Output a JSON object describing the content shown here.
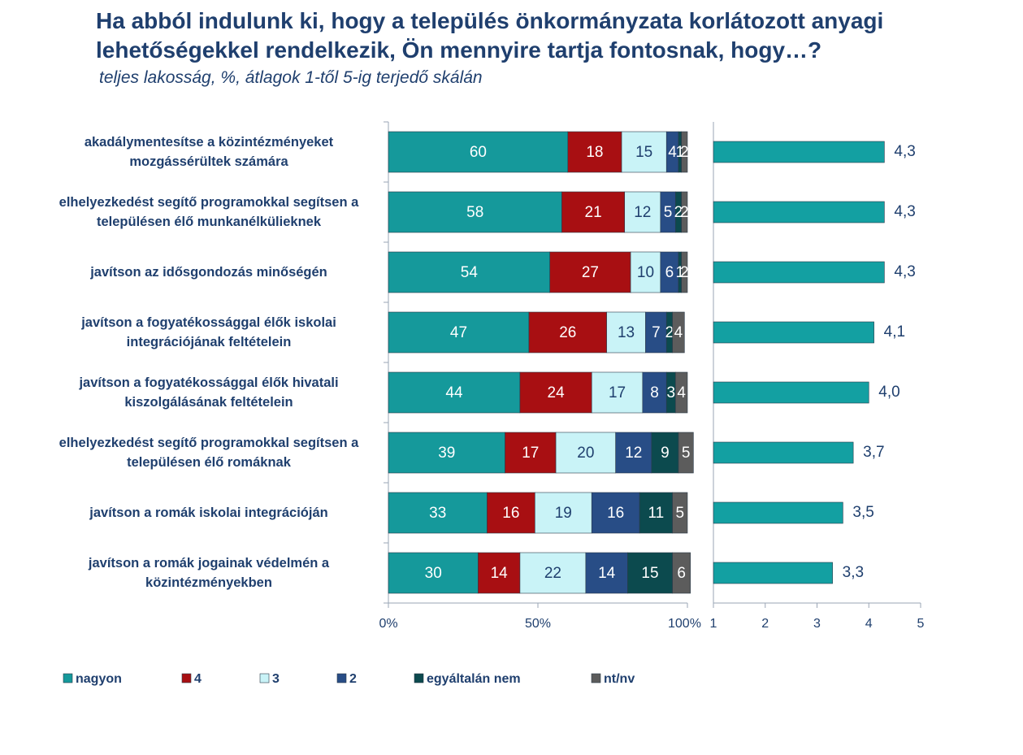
{
  "chart_data": [
    {
      "type": "bar",
      "stacked": true,
      "orientation": "horizontal",
      "title": "Ha abból indulunk ki, hogy a település önkormányzata korlátozott anyagi lehetőségekkel rendelkezik, Ön mennyire tartja fontosnak, hogy…?",
      "subtitle": "teljes lakosság, %, átlagok 1-től 5-ig terjedő skálán",
      "categories": [
        "akadálymentesítse a közintézményeket mozgássérültek számára",
        "elhelyezkedést segítő programokkal segítsen a településen élő munkanélkülieknek",
        "javítson az idősgondozás minőségén",
        "javítson a fogyatékossággal élők iskolai integrációjának feltételein",
        "javítson a fogyatékossággal élők hivatali kiszolgálásának feltételein",
        "elhelyezkedést segítő programokkal segítsen a településen élő romáknak",
        "javítson a romák iskolai integrációján",
        "javítson a romák jogainak védelmén a közintézményekben"
      ],
      "series": [
        {
          "name": "nagyon",
          "color": "#15999b",
          "values": [
            60,
            58,
            54,
            47,
            44,
            39,
            33,
            30
          ]
        },
        {
          "name": "4",
          "color": "#a80f12",
          "values": [
            18,
            21,
            27,
            26,
            24,
            17,
            16,
            14
          ]
        },
        {
          "name": "3",
          "color": "#c9f3f7",
          "values": [
            15,
            12,
            10,
            13,
            17,
            20,
            19,
            22
          ]
        },
        {
          "name": "2",
          "color": "#284d86",
          "values": [
            4,
            5,
            6,
            7,
            8,
            12,
            16,
            14
          ]
        },
        {
          "name": "egyáltalán nem",
          "color": "#0c4a4e",
          "values": [
            1,
            2,
            1,
            2,
            3,
            9,
            11,
            15
          ]
        },
        {
          "name": "nt/nv",
          "color": "#5c5c5c",
          "values": [
            2,
            2,
            2,
            4,
            4,
            5,
            5,
            6
          ]
        }
      ],
      "xlim": [
        0,
        100
      ],
      "xticks": [
        {
          "value": 0,
          "label": "0%"
        },
        {
          "value": 50,
          "label": "50%"
        },
        {
          "value": 100,
          "label": "100%"
        }
      ],
      "legend": "bottom"
    },
    {
      "type": "bar",
      "orientation": "horizontal",
      "color": "#13a0a2",
      "values": [
        4.3,
        4.3,
        4.3,
        4.1,
        4.0,
        3.7,
        3.5,
        3.3
      ],
      "value_labels": [
        "4,3",
        "4,3",
        "4,3",
        "4,1",
        "4,0",
        "3,7",
        "3,5",
        "3,3"
      ],
      "xlim": [
        1,
        5
      ],
      "xticks": [
        1,
        2,
        3,
        4,
        5
      ]
    }
  ]
}
